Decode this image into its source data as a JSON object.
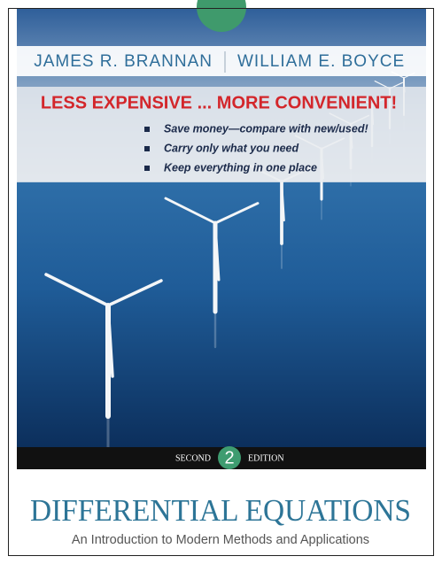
{
  "cover": {
    "authors": [
      "JAMES R. BRANNAN",
      "WILLIAM E. BOYCE"
    ],
    "promo": {
      "headline": "LESS EXPENSIVE ... MORE CONVENIENT!",
      "bullets": [
        "Save money—compare with new/used!",
        "Carry only what you need",
        "Keep everything in one place"
      ]
    },
    "edition": {
      "before": "SECOND",
      "number": "2",
      "after": "EDITION"
    },
    "title": "DIFFERENTIAL EQUATIONS",
    "subtitle": "An Introduction to Modern Methods and Applications"
  }
}
